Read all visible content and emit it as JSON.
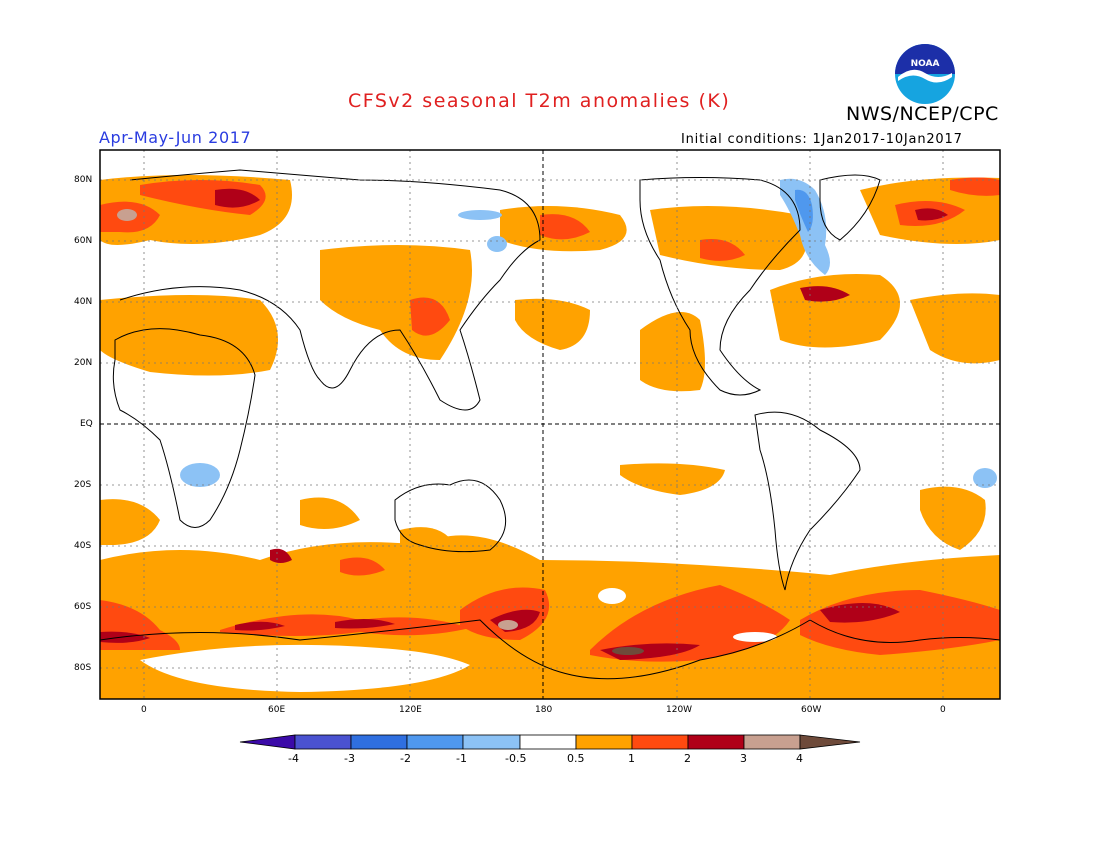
{
  "header": {
    "title": "CFSv2 seasonal T2m anomalies (K)",
    "organization": "NWS/NCEP/CPC",
    "logo_text": "NOAA",
    "period": "Apr-May-Jun 2017",
    "initial_conditions": "Initial conditions: 1Jan2017-10Jan2017"
  },
  "map": {
    "lat_labels": [
      "80N",
      "60N",
      "40N",
      "20N",
      "EQ",
      "20S",
      "40S",
      "60S",
      "80S"
    ],
    "lon_labels": [
      "0",
      "60E",
      "120E",
      "180",
      "120W",
      "60W",
      "0"
    ]
  },
  "colorbar": {
    "labels": [
      "-4",
      "-3",
      "-2",
      "-1",
      "-0.5",
      "0.5",
      "1",
      "2",
      "3",
      "4"
    ],
    "colors": [
      "#3b0aa8",
      "#4a52d0",
      "#2f6fe0",
      "#4f98ee",
      "#8cc2f5",
      "#ffffff",
      "#ffa200",
      "#ff4a10",
      "#b00018",
      "#c8a090",
      "#6e4a3a"
    ]
  },
  "colors": {
    "title": "#e02020",
    "period": "#2a3ce0",
    "anomaly_0_5_to_1": "#ffa200",
    "anomaly_1_to_2": "#ff4a10",
    "anomaly_2_to_3": "#b00018",
    "anomaly_3_to_4": "#c8a090",
    "anomaly_neg_0_5_to_1": "#8cc2f5",
    "anomaly_neg_1_to_2": "#4f98ee"
  }
}
